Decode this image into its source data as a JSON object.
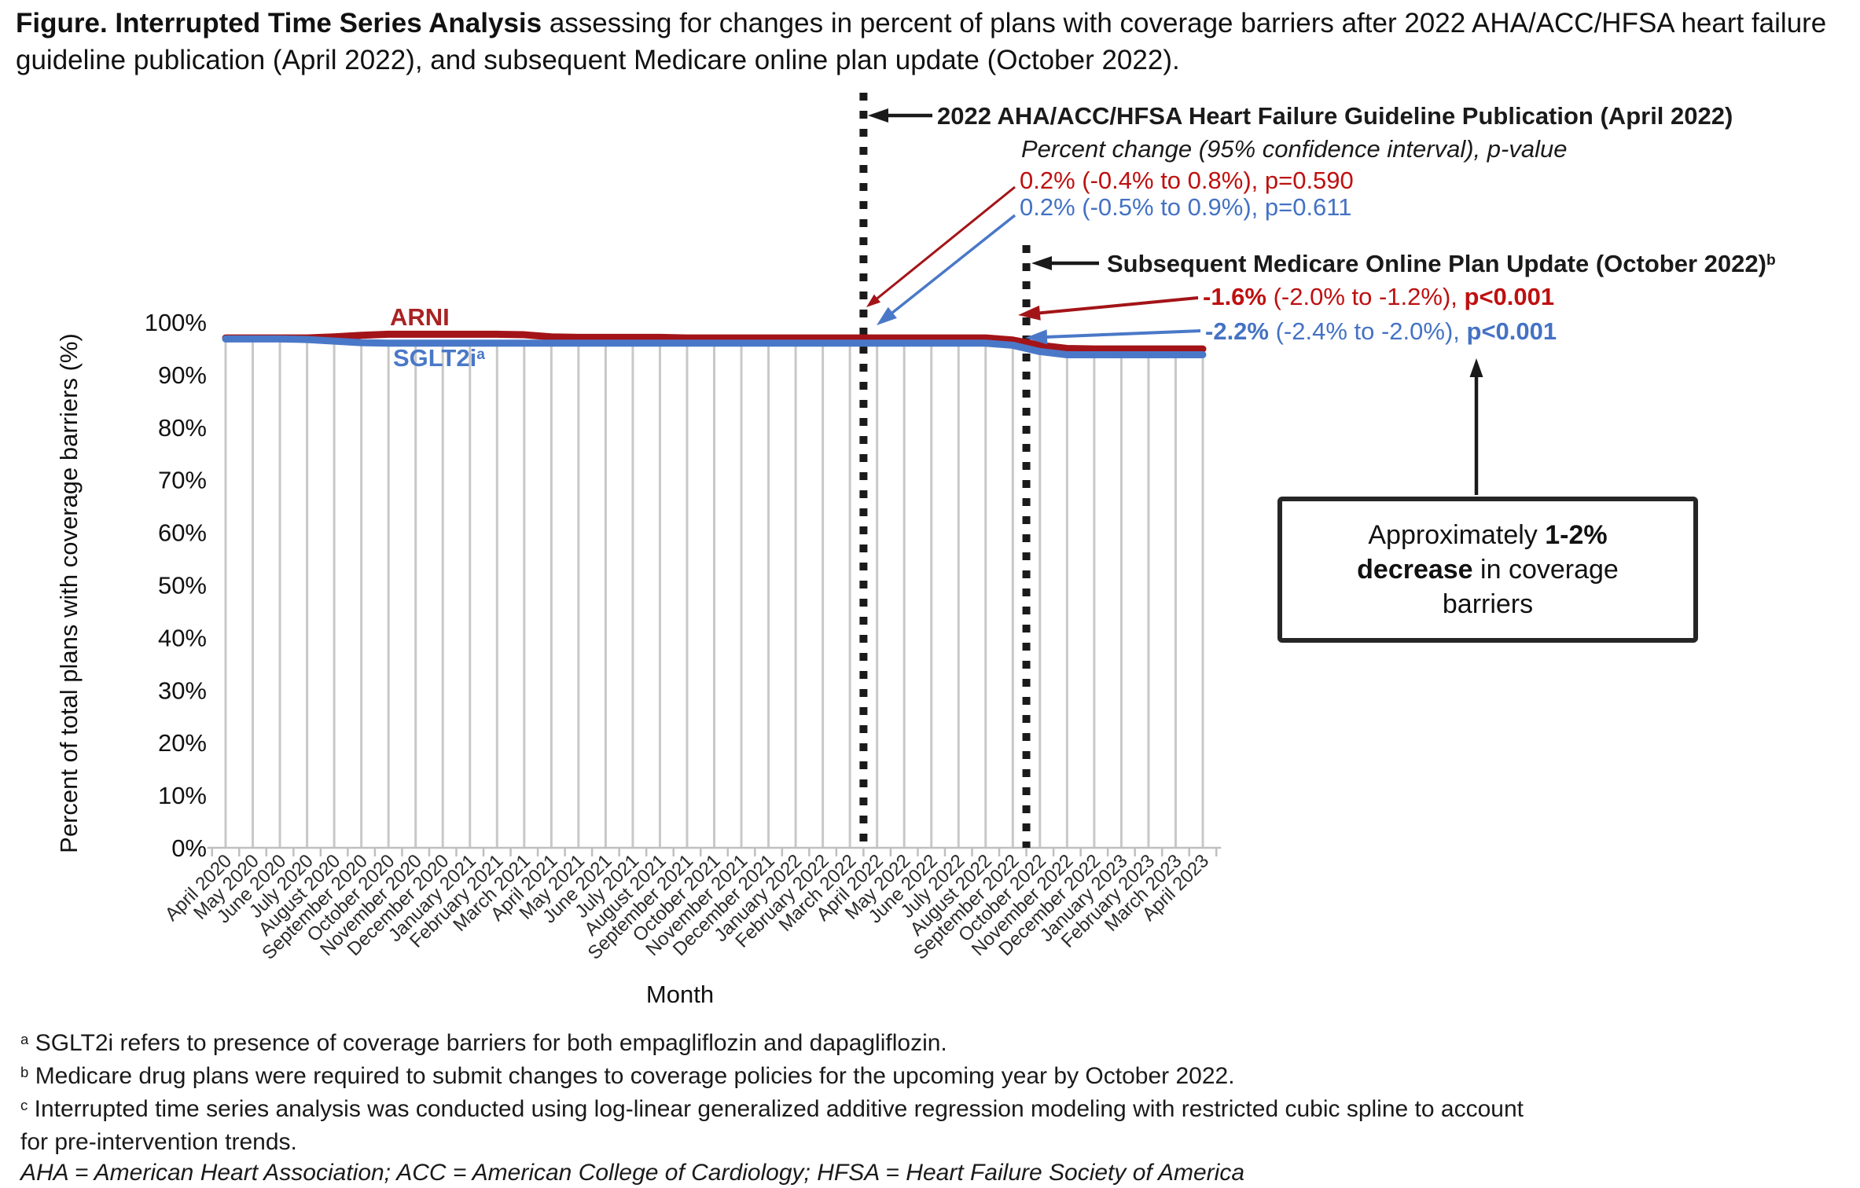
{
  "colors": {
    "arni_line": "#A31418",
    "sglt2i_line": "#4A78C8",
    "arni_text": "#BE1010",
    "sglt2i_text": "#4472C4",
    "gridline": "#C8C8C8",
    "axis": "#BFBFBF",
    "black": "#1A1A1A"
  },
  "title": {
    "bold_lead": "Figure. Interrupted Time Series Analysis",
    "rest": " assessing for changes in percent of plans with coverage barriers after 2022 AHA/ACC/HFSA heart failure guideline publication (April 2022), and subsequent Medicare online plan update (October 2022)."
  },
  "annotations": {
    "guideline": {
      "title": "2022 AHA/ACC/HFSA Heart Failure Guideline Publication (April 2022)",
      "subtitle": "Percent change (95% confidence interval), p-value",
      "arni_stat": "0.2% (-0.4% to 0.8%), p=0.590",
      "sglt2i_stat": "0.2% (-0.5% to 0.9%), p=0.611"
    },
    "update": {
      "title": "Subsequent Medicare Online Plan Update (October 2022)",
      "title_sup": "b",
      "arni": {
        "pct": "-1.6%",
        "ci": " (-2.0% to -1.2%), ",
        "p": "p<0.001"
      },
      "sglt2i": {
        "pct": "-2.2%",
        "ci": " (-2.4% to -2.0%), ",
        "p": "p<0.001"
      }
    },
    "callout": {
      "pre": "Approximately ",
      "bold": "1-2% decrease",
      "post": " in coverage barriers"
    }
  },
  "footnotes": [
    {
      "sup": "a",
      "text": "SGLT2i refers to presence of coverage barriers for both empagliflozin and dapagliflozin."
    },
    {
      "sup": "b",
      "text": "Medicare drug plans were required to submit changes to coverage policies for the upcoming year by October 2022."
    },
    {
      "sup": "c",
      "text": "Interrupted time series analysis was conducted using log-linear generalized additive regression modeling with restricted cubic spline to account for pre-intervention trends."
    },
    {
      "sup": "",
      "text": "AHA = American Heart Association; ACC = American College of Cardiology; HFSA = Heart Failure Society of America"
    }
  ],
  "chart_data": {
    "type": "line",
    "xlabel": "Month",
    "ylabel": "Percent of total plans with coverage barriers (%)",
    "ylim": [
      0,
      100
    ],
    "ytick_step": 10,
    "ytick_suffix": "%",
    "grid": "vertical drop lines at each month",
    "legend_position": "inline labels on lines",
    "categories": [
      "April 2020",
      "May 2020",
      "June 2020",
      "July 2020",
      "August 2020",
      "September 2020",
      "October 2020",
      "November 2020",
      "December 2020",
      "January 2021",
      "February 2021",
      "March 2021",
      "April 2021",
      "May 2021",
      "June 2021",
      "July 2021",
      "August 2021",
      "September 2021",
      "October 2021",
      "November 2021",
      "December 2021",
      "January 2022",
      "February 2022",
      "March 2022",
      "April 2022",
      "May 2022",
      "June 2022",
      "July 2022",
      "August 2022",
      "September 2022",
      "October 2022",
      "November 2022",
      "December 2022",
      "January 2023",
      "February 2023",
      "March 2023",
      "April 2023"
    ],
    "series": [
      {
        "name": "ARNI",
        "color": "#A31418",
        "values": [
          97.0,
          97.0,
          97.0,
          97.0,
          97.2,
          97.5,
          97.7,
          97.7,
          97.7,
          97.7,
          97.7,
          97.6,
          97.2,
          97.1,
          97.1,
          97.1,
          97.1,
          97.0,
          97.0,
          97.0,
          97.0,
          97.0,
          97.0,
          97.0,
          97.0,
          97.0,
          97.0,
          97.0,
          97.0,
          96.6,
          95.6,
          95.0,
          94.9,
          94.9,
          94.9,
          94.9,
          94.9
        ]
      },
      {
        "name": "SGLT2i",
        "name_sup": "a",
        "color": "#4A78C8",
        "values": [
          96.8,
          96.8,
          96.8,
          96.7,
          96.4,
          96.1,
          96.0,
          96.0,
          96.0,
          96.0,
          96.0,
          96.0,
          96.0,
          96.0,
          96.0,
          96.0,
          96.0,
          96.0,
          96.0,
          96.0,
          96.0,
          96.0,
          96.0,
          96.0,
          96.0,
          96.0,
          96.0,
          96.0,
          96.0,
          95.6,
          94.4,
          93.8,
          93.8,
          93.8,
          93.8,
          93.8,
          93.8
        ]
      }
    ],
    "events": [
      {
        "name": "guideline-publication",
        "month": "April 2022",
        "boundary_index": 24
      },
      {
        "name": "medicare-plan-update",
        "month": "October 2022",
        "boundary_index": 30
      }
    ]
  }
}
